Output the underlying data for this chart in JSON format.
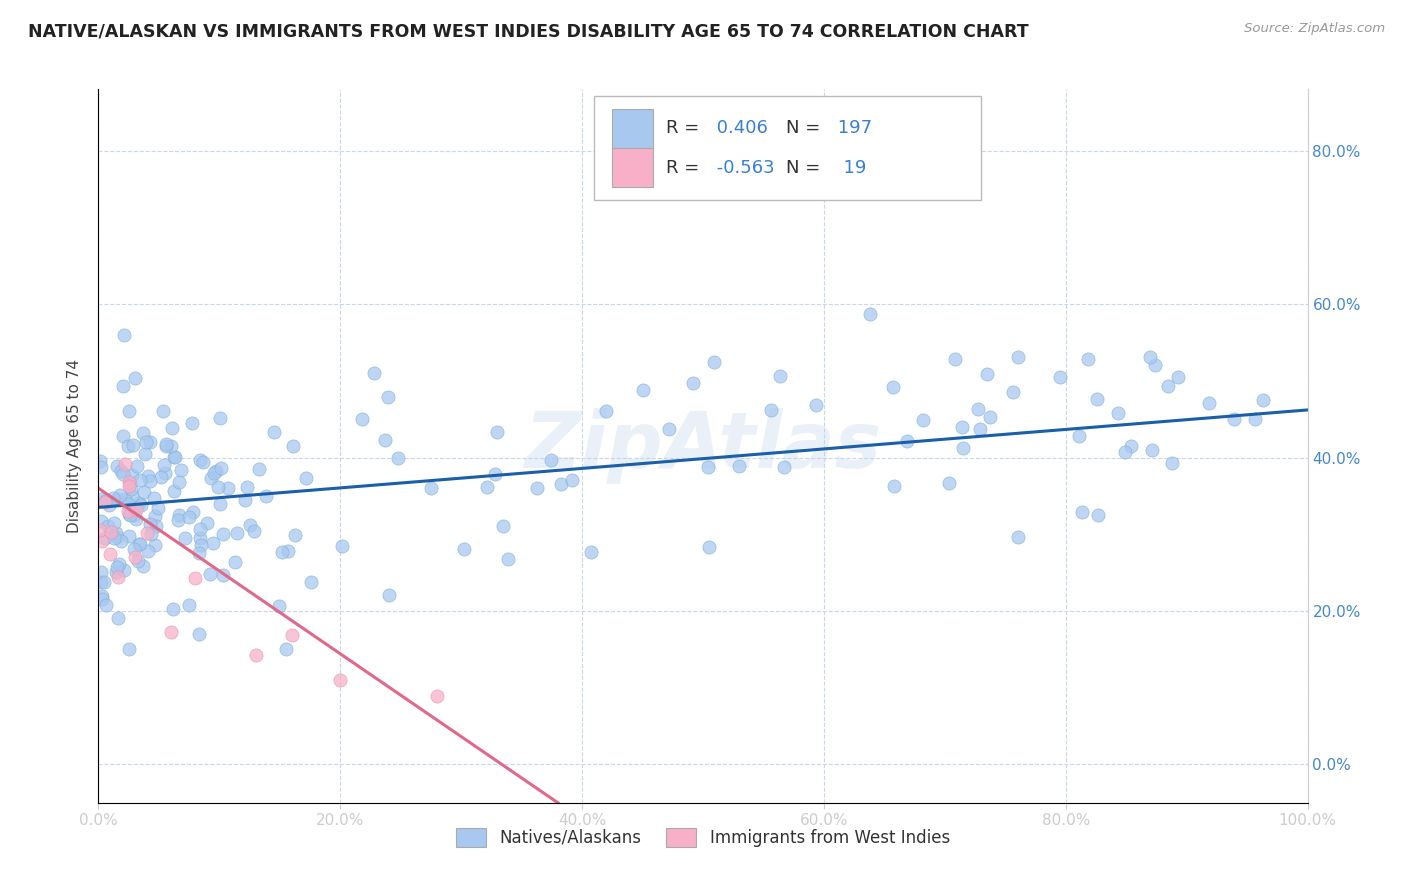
{
  "title": "NATIVE/ALASKAN VS IMMIGRANTS FROM WEST INDIES DISABILITY AGE 65 TO 74 CORRELATION CHART",
  "source": "Source: ZipAtlas.com",
  "ylabel": "Disability Age 65 to 74",
  "xlim": [
    0.0,
    1.0
  ],
  "ylim": [
    -0.05,
    0.88
  ],
  "x_ticks": [
    0.0,
    0.2,
    0.4,
    0.6,
    0.8,
    1.0
  ],
  "x_tick_labels": [
    "0.0%",
    "20.0%",
    "40.0%",
    "60.0%",
    "80.0%",
    "100.0%"
  ],
  "y_ticks": [
    0.0,
    0.2,
    0.4,
    0.6,
    0.8
  ],
  "y_tick_labels": [
    "0.0%",
    "20.0%",
    "40.0%",
    "60.0%",
    "80.0%"
  ],
  "legend_label_blue": "Natives/Alaskans",
  "legend_label_pink": "Immigrants from West Indies",
  "R_blue": 0.406,
  "N_blue": 197,
  "R_pink": -0.563,
  "N_pink": 19,
  "blue_color": "#a8c8f0",
  "blue_edge_color": "#7aaed8",
  "blue_line_color": "#1a5fa8",
  "pink_color": "#f8b0c8",
  "pink_edge_color": "#e890b0",
  "pink_line_color": "#e06888",
  "watermark": "ZipAtlas",
  "background_color": "#ffffff",
  "grid_color": "#c8d8e8",
  "title_color": "#222222",
  "tick_color": "#4488cc",
  "ylabel_color": "#444444",
  "blue_trendline_x": [
    0.0,
    1.0
  ],
  "blue_trendline_y": [
    0.335,
    0.462
  ],
  "pink_trendline_x": [
    0.0,
    0.38
  ],
  "pink_trendline_y": [
    0.36,
    -0.05
  ]
}
